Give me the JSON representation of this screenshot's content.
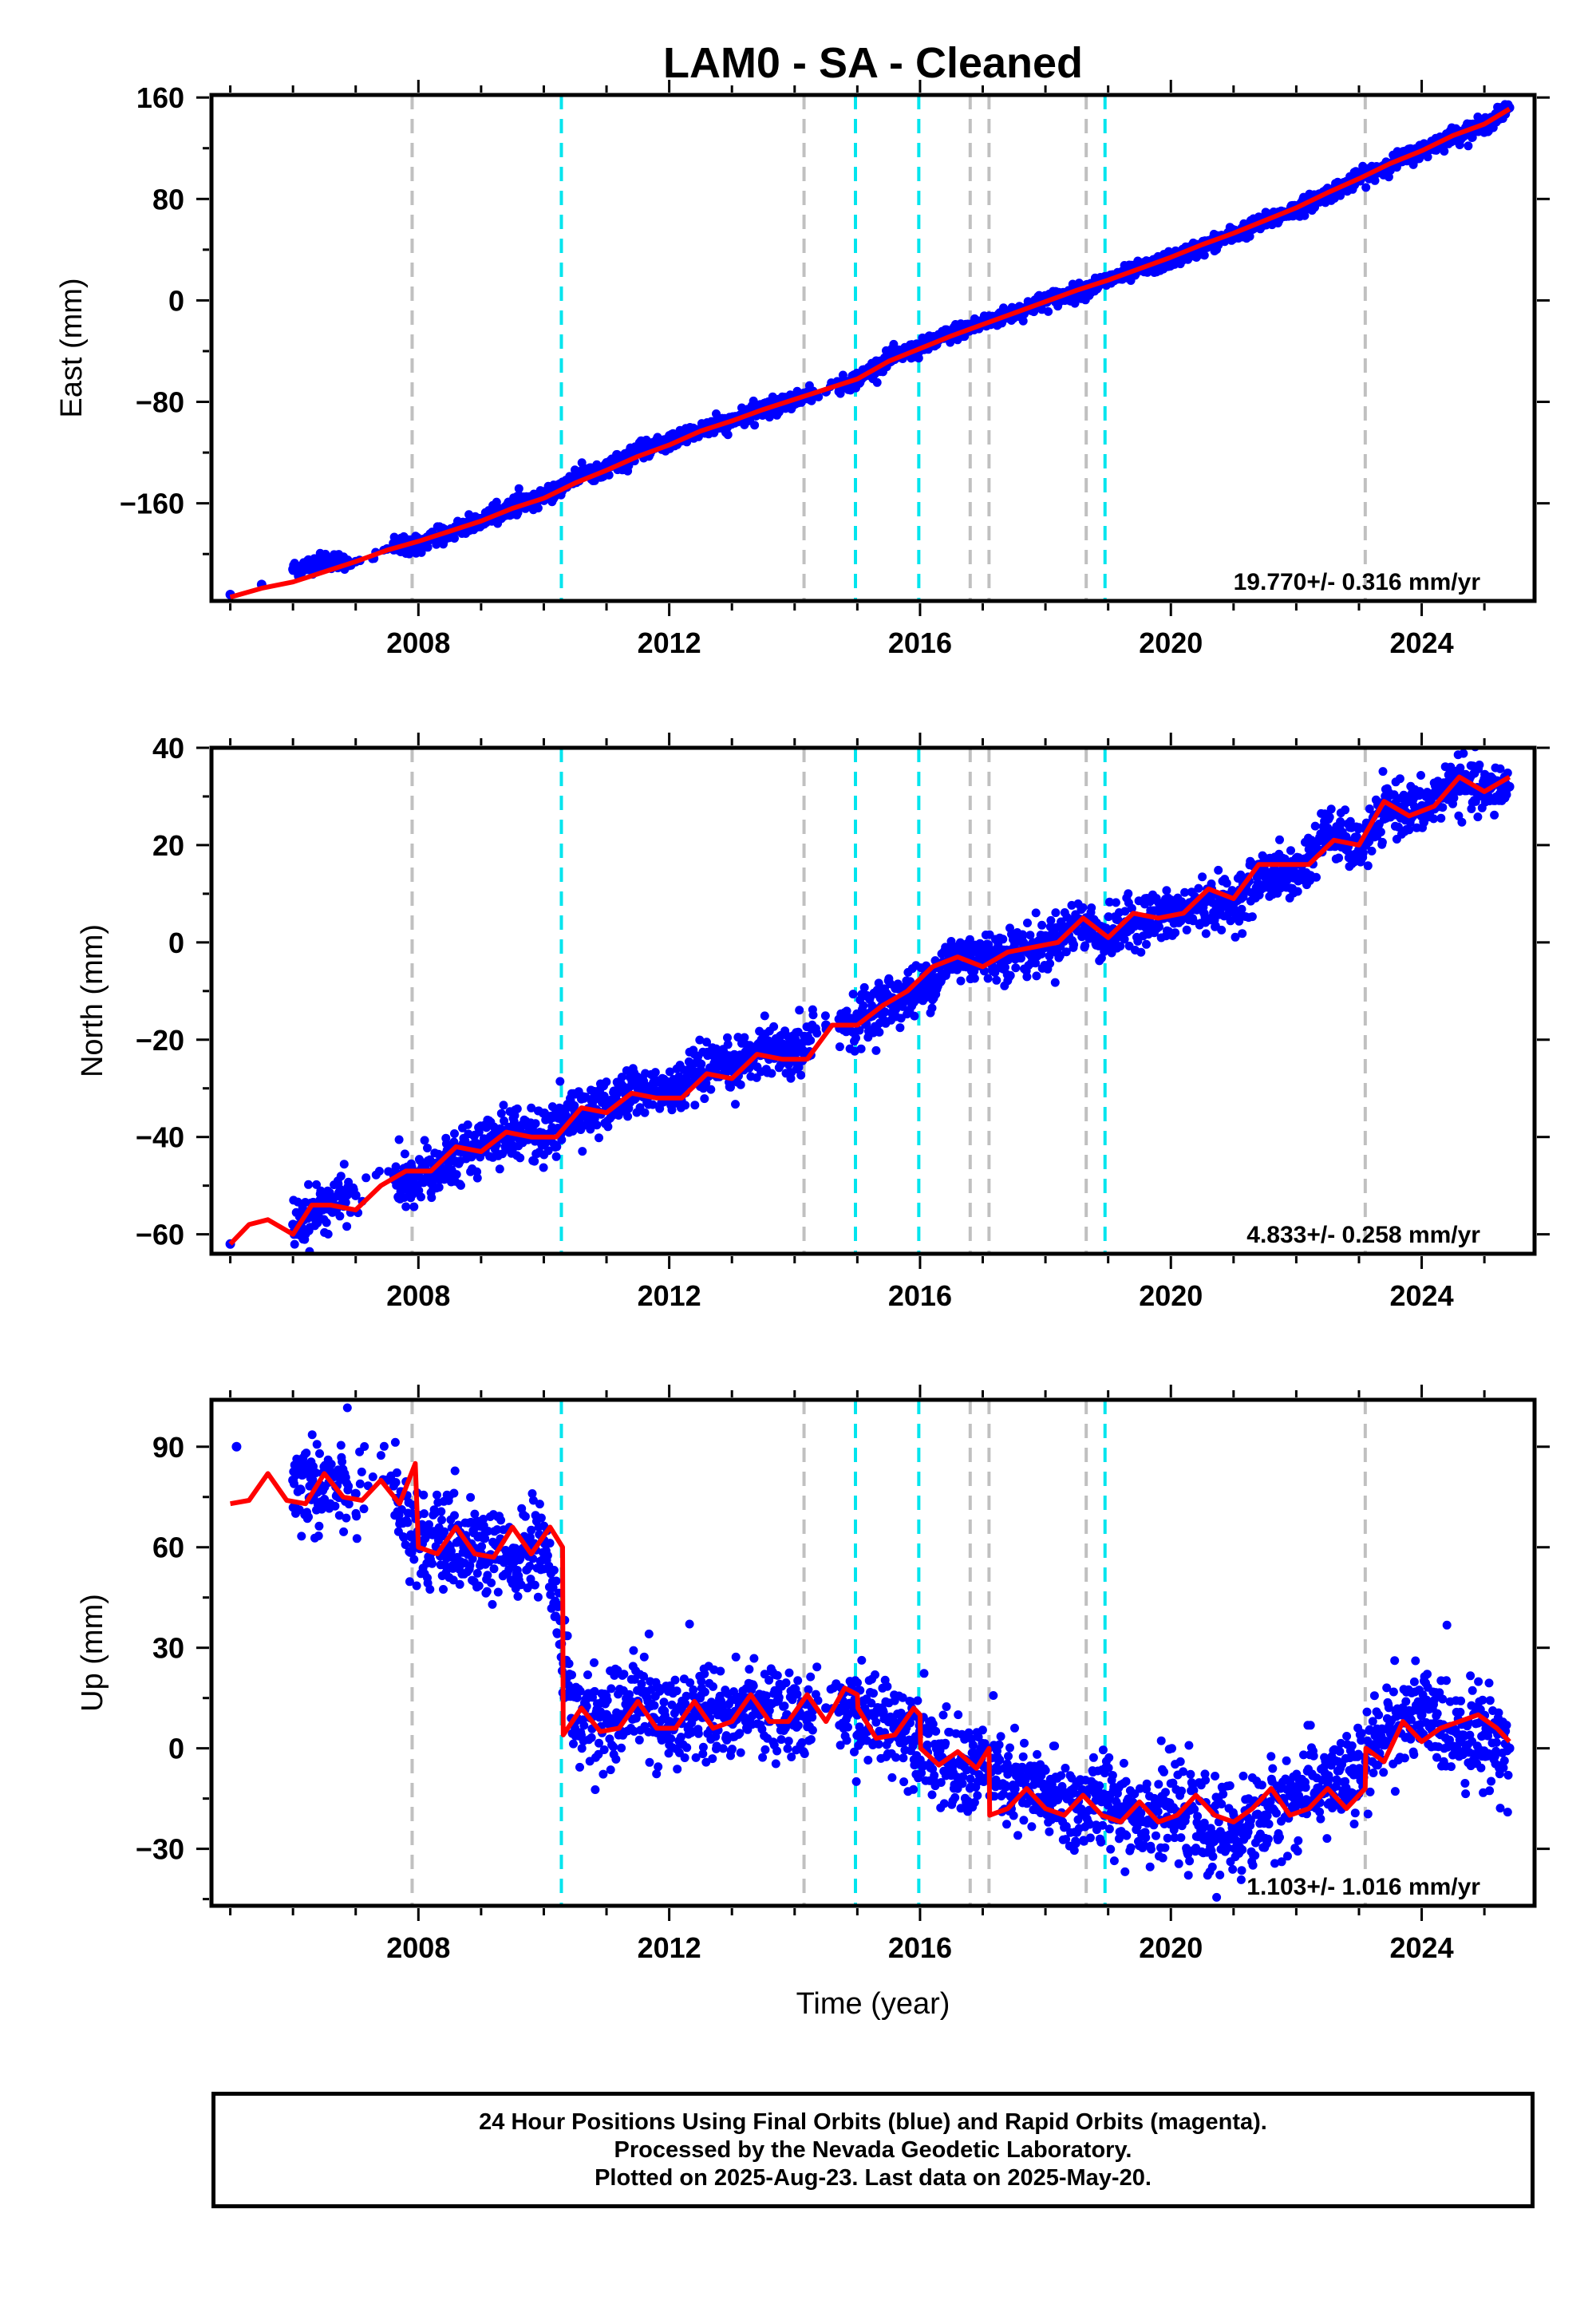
{
  "title": "LAM0  - SA - Cleaned",
  "footer": {
    "line1": "24 Hour Positions Using Final Orbits (blue) and Rapid Orbits (magenta).",
    "line2": "Processed by the Nevada Geodetic Laboratory.",
    "line3": "Plotted on 2025-Aug-23. Last data on 2025-May-20."
  },
  "colors": {
    "points": "#0000ff",
    "model": "#ff0000",
    "equipment_change": "#00e5ee",
    "earthquake": "#c0c0c0"
  },
  "chart_data": [
    {
      "type": "scatter",
      "component": "East",
      "ylabel": "East (mm)",
      "xlabel": "",
      "xlim": [
        2004.7,
        2025.8
      ],
      "ylim": [
        -237,
        162
      ],
      "yticks": [
        -160,
        -80,
        0,
        80,
        160
      ],
      "xticks": [
        2008,
        2012,
        2016,
        2020,
        2024
      ],
      "rate_label": "19.770+/- 0.316 mm/yr",
      "rate": 19.77,
      "series": [
        {
          "name": "",
          "style": "points",
          "x": [
            2005.0,
            2005.5,
            2006.0,
            2006.5,
            2007.0,
            2007.5,
            2008.0,
            2008.5,
            2009.0,
            2009.5,
            2010.0,
            2010.5,
            2011.0,
            2011.5,
            2012.0,
            2012.5,
            2013.0,
            2013.5,
            2014.0,
            2014.5,
            2015.0,
            2015.5,
            2016.0,
            2016.5,
            2017.0,
            2017.5,
            2018.0,
            2018.5,
            2019.0,
            2019.5,
            2020.0,
            2020.5,
            2021.0,
            2021.5,
            2022.0,
            2022.5,
            2023.0,
            2023.5,
            2024.0,
            2024.5,
            2025.0,
            2025.4
          ],
          "y": [
            -232,
            -224,
            -212,
            -205,
            -206,
            -196,
            -192,
            -183,
            -175,
            -162,
            -155,
            -140,
            -132,
            -120,
            -112,
            -102,
            -96,
            -86,
            -78,
            -72,
            -62,
            -46,
            -38,
            -26,
            -18,
            -10,
            0,
            6,
            16,
            24,
            32,
            42,
            52,
            62,
            72,
            84,
            96,
            108,
            118,
            130,
            138,
            152
          ]
        },
        {
          "name": "",
          "style": "line",
          "x": [
            2005.0,
            2005.5,
            2006.0,
            2006.5,
            2007.0,
            2007.5,
            2008.0,
            2008.5,
            2009.0,
            2009.5,
            2010.0,
            2010.5,
            2011.0,
            2011.5,
            2012.0,
            2012.5,
            2013.0,
            2013.5,
            2014.0,
            2014.5,
            2015.0,
            2015.5,
            2016.0,
            2016.5,
            2017.0,
            2017.5,
            2018.0,
            2018.5,
            2019.0,
            2019.5,
            2020.0,
            2020.5,
            2021.0,
            2021.5,
            2022.0,
            2022.5,
            2023.0,
            2023.5,
            2024.0,
            2024.5,
            2025.0,
            2025.4
          ],
          "y": [
            -234,
            -227,
            -222,
            -214,
            -206,
            -197,
            -190,
            -182,
            -174,
            -164,
            -156,
            -144,
            -134,
            -123,
            -114,
            -103,
            -95,
            -86,
            -78,
            -70,
            -62,
            -48,
            -38,
            -28,
            -19,
            -10,
            -1,
            8,
            16,
            25,
            34,
            44,
            53,
            63,
            73,
            85,
            96,
            108,
            118,
            130,
            139,
            151
          ]
        }
      ]
    },
    {
      "type": "scatter",
      "component": "North",
      "ylabel": "North (mm)",
      "xlabel": "",
      "xlim": [
        2004.7,
        2025.8
      ],
      "ylim": [
        -64,
        40
      ],
      "yticks": [
        -60,
        -40,
        -20,
        0,
        20,
        40
      ],
      "xticks": [
        2008,
        2012,
        2016,
        2020,
        2024
      ],
      "rate_label": "4.833+/- 0.258 mm/yr",
      "rate": 4.833,
      "series": [
        {
          "name": "",
          "style": "points",
          "x": [
            2005.0,
            2006.0,
            2006.5,
            2007.0,
            2008.0,
            2008.5,
            2009.0,
            2009.5,
            2010.0,
            2010.5,
            2011.0,
            2011.5,
            2012.0,
            2012.5,
            2013.0,
            2013.5,
            2014.0,
            2014.5,
            2015.0,
            2015.5,
            2016.0,
            2016.5,
            2017.0,
            2017.5,
            2018.0,
            2018.5,
            2019.0,
            2019.5,
            2020.0,
            2020.5,
            2021.0,
            2021.5,
            2022.0,
            2022.5,
            2023.0,
            2023.5,
            2024.0,
            2024.5,
            2025.0,
            2025.4
          ],
          "y": [
            -62,
            -58,
            -54,
            -52,
            -48,
            -44,
            -42,
            -38,
            -40,
            -35,
            -34,
            -30,
            -31,
            -27,
            -26,
            -21,
            -23,
            -17,
            -16,
            -12,
            -10,
            -3,
            -3,
            -2,
            -1,
            4,
            1,
            5,
            5,
            8,
            8,
            14,
            14,
            23,
            19,
            28,
            27,
            33,
            31,
            32
          ]
        },
        {
          "name": "",
          "style": "line",
          "x": [
            2005.0,
            2005.3,
            2005.6,
            2006.0,
            2006.3,
            2006.6,
            2007.0,
            2007.4,
            2007.8,
            2008.2,
            2008.6,
            2009.0,
            2009.4,
            2009.8,
            2010.2,
            2010.6,
            2011.0,
            2011.4,
            2011.8,
            2012.2,
            2012.6,
            2013.0,
            2013.4,
            2013.8,
            2014.2,
            2014.6,
            2015.0,
            2015.4,
            2015.8,
            2016.2,
            2016.6,
            2017.0,
            2017.4,
            2017.8,
            2018.2,
            2018.6,
            2019.0,
            2019.4,
            2019.8,
            2020.2,
            2020.6,
            2021.0,
            2021.4,
            2021.8,
            2022.2,
            2022.6,
            2023.0,
            2023.4,
            2023.8,
            2024.2,
            2024.6,
            2025.0,
            2025.4
          ],
          "y": [
            -62,
            -58,
            -57,
            -60,
            -54,
            -54,
            -55,
            -50,
            -47,
            -47,
            -42,
            -43,
            -39,
            -40,
            -40,
            -34,
            -35,
            -31,
            -32,
            -32,
            -27,
            -28,
            -23,
            -24,
            -24,
            -17,
            -17,
            -13,
            -10,
            -5,
            -3,
            -5,
            -2,
            -1,
            0,
            5,
            1,
            6,
            5,
            6,
            11,
            9,
            16,
            16,
            16,
            21,
            20,
            29,
            26,
            28,
            34,
            31,
            34
          ]
        }
      ]
    },
    {
      "type": "scatter",
      "component": "Up",
      "ylabel": "Up (mm)",
      "xlabel": "Time (year)",
      "xlim": [
        2004.7,
        2025.8
      ],
      "ylim": [
        -47,
        104
      ],
      "yticks": [
        -30,
        0,
        30,
        60,
        90
      ],
      "xticks": [
        2008,
        2012,
        2016,
        2020,
        2024
      ],
      "rate_label": "1.103+/- 1.016 mm/yr",
      "rate": 1.103,
      "series": [
        {
          "name": "",
          "style": "points",
          "x": [
            2005.1,
            2006.0,
            2006.5,
            2007.0,
            2007.5,
            2008.0,
            2008.5,
            2009.0,
            2009.5,
            2010.0,
            2010.5,
            2011.0,
            2011.5,
            2012.0,
            2012.5,
            2013.0,
            2013.5,
            2014.0,
            2014.5,
            2015.0,
            2015.5,
            2016.0,
            2016.5,
            2017.0,
            2017.5,
            2018.0,
            2018.5,
            2019.0,
            2019.5,
            2020.0,
            2020.5,
            2021.0,
            2021.5,
            2022.0,
            2022.5,
            2023.0,
            2023.5,
            2024.0,
            2024.5,
            2025.0,
            2025.4
          ],
          "y": [
            90,
            80,
            78,
            76,
            80,
            62,
            60,
            58,
            55,
            62,
            8,
            10,
            14,
            8,
            12,
            10,
            14,
            8,
            12,
            10,
            8,
            5,
            -8,
            -5,
            -12,
            -14,
            -18,
            -15,
            -20,
            -18,
            -24,
            -26,
            -20,
            -14,
            -10,
            -8,
            8,
            10,
            6,
            4,
            0
          ]
        },
        {
          "name": "",
          "style": "line",
          "x": [
            2005.0,
            2005.3,
            2005.6,
            2005.9,
            2006.2,
            2006.5,
            2006.8,
            2007.1,
            2007.4,
            2007.7,
            2007.95,
            2008.0,
            2008.3,
            2008.6,
            2008.9,
            2009.2,
            2009.5,
            2009.8,
            2010.1,
            2010.3,
            2010.31,
            2010.6,
            2010.9,
            2011.2,
            2011.5,
            2011.8,
            2012.1,
            2012.4,
            2012.7,
            2013.0,
            2013.3,
            2013.6,
            2013.9,
            2014.2,
            2014.5,
            2014.8,
            2015.0,
            2015.01,
            2015.3,
            2015.6,
            2015.9,
            2016.0,
            2016.01,
            2016.3,
            2016.6,
            2016.9,
            2017.1,
            2017.11,
            2017.4,
            2017.7,
            2018.0,
            2018.3,
            2018.6,
            2018.9,
            2019.2,
            2019.5,
            2019.8,
            2020.1,
            2020.4,
            2020.7,
            2021.0,
            2021.3,
            2021.6,
            2021.9,
            2022.2,
            2022.5,
            2022.8,
            2023.1,
            2023.11,
            2023.4,
            2023.7,
            2024.0,
            2024.3,
            2024.6,
            2024.9,
            2025.2,
            2025.4
          ],
          "y": [
            73,
            74,
            82,
            74,
            73,
            82,
            75,
            74,
            80,
            73,
            85,
            60,
            58,
            66,
            58,
            57,
            66,
            58,
            66,
            60,
            4,
            12,
            5,
            6,
            14,
            6,
            6,
            14,
            6,
            8,
            16,
            8,
            8,
            16,
            8,
            18,
            16,
            12,
            3,
            4,
            12,
            10,
            0,
            -5,
            -1,
            -6,
            0,
            -20,
            -18,
            -12,
            -18,
            -20,
            -14,
            -20,
            -22,
            -16,
            -22,
            -20,
            -14,
            -20,
            -22,
            -18,
            -12,
            -20,
            -18,
            -12,
            -18,
            -12,
            0,
            -4,
            8,
            2,
            6,
            8,
            10,
            6,
            2
          ]
        }
      ]
    }
  ],
  "vertical_lines": {
    "earthquake": [
      2007.9,
      2014.15,
      2016.8,
      2017.1,
      2018.65,
      2023.1
    ],
    "equipment_change": [
      2010.28,
      2014.97,
      2015.98,
      2018.95
    ]
  }
}
